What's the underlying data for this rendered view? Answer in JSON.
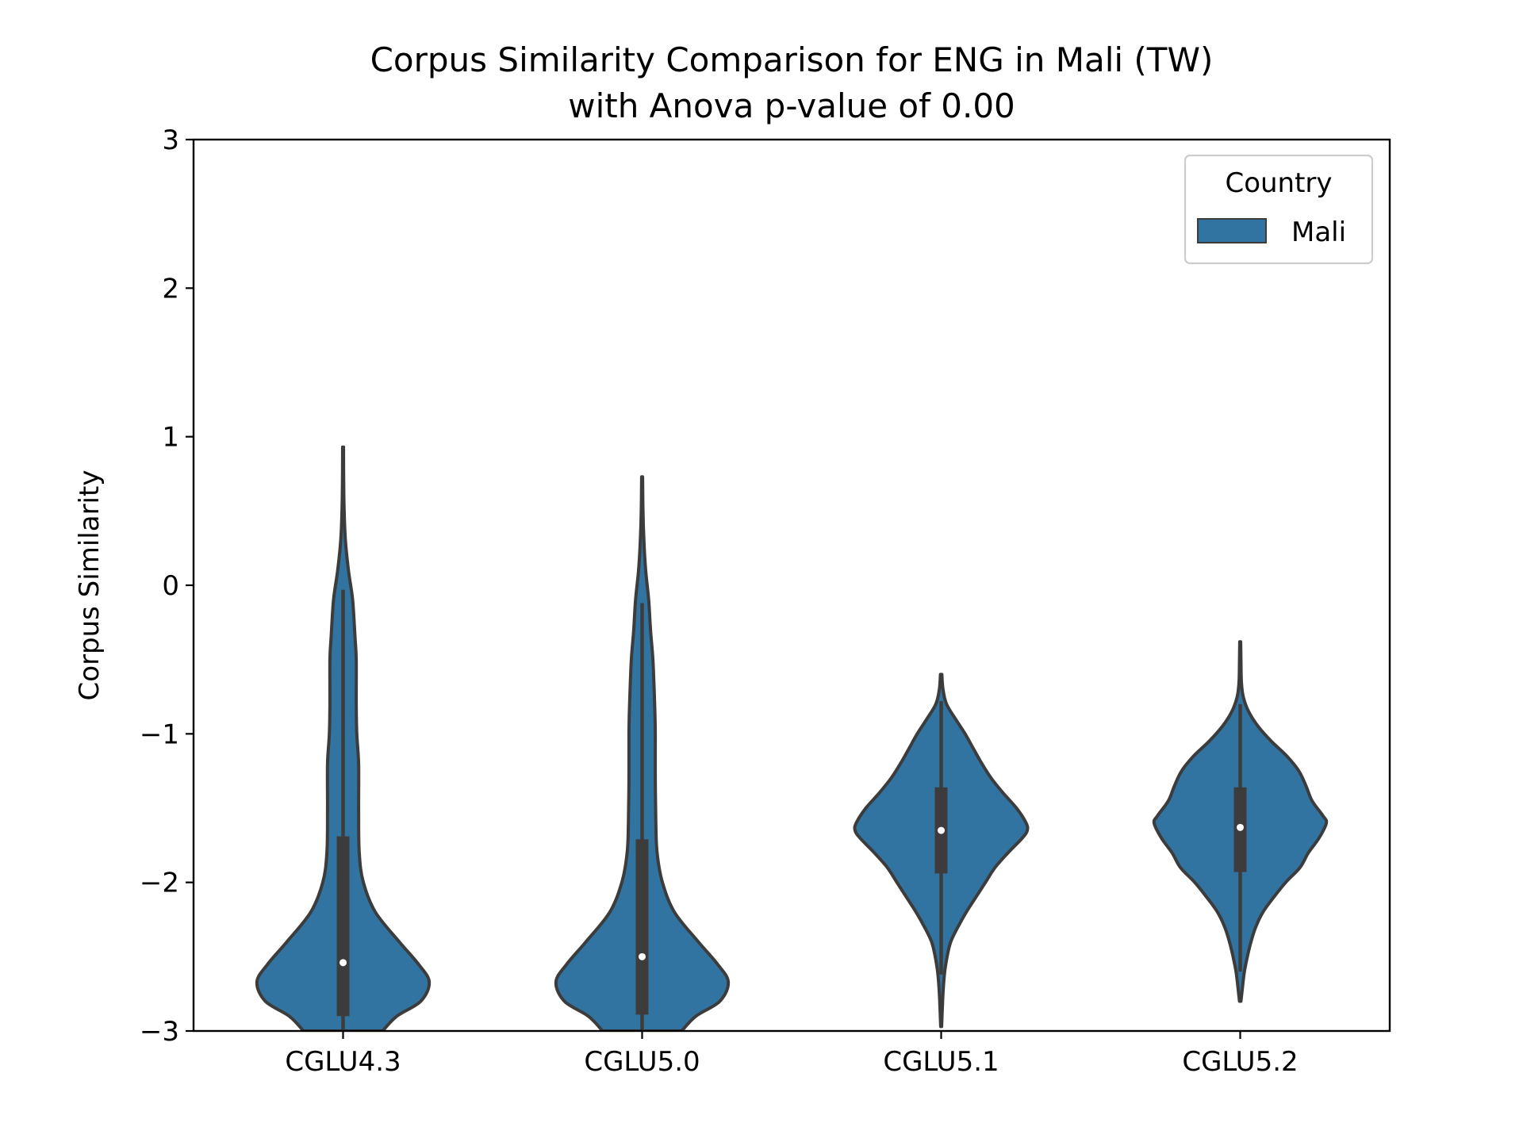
{
  "chart_data": {
    "type": "violin",
    "title": "Corpus Similarity Comparison for ENG in Mali (TW)",
    "subtitle": "with Anova p-value of 0.00",
    "xlabel": "",
    "ylabel": "Corpus Similarity",
    "ylim": [
      -3,
      3
    ],
    "y_ticks": [
      3,
      2,
      1,
      0,
      -1,
      -2,
      -3
    ],
    "y_tick_labels": [
      "3",
      "2",
      "1",
      "0",
      "−1",
      "−2",
      "−3"
    ],
    "categories": [
      "CGLU4.3",
      "CGLU5.0",
      "CGLU5.1",
      "CGLU5.2"
    ],
    "legend": {
      "title": "Country",
      "entries": [
        "Mali"
      ],
      "position": "upper right"
    },
    "colors": {
      "fill": "#3274a1",
      "edge": "#3c3c3c",
      "box": "#3c3c3c",
      "median": "#ffffff",
      "axis": "#000000"
    },
    "series": [
      {
        "name": "Mali",
        "groups": [
          {
            "category": "CGLU4.3",
            "median": -2.54,
            "q1": -2.9,
            "q3": -1.69,
            "whisker_low": -3.0,
            "whisker_high": -0.03,
            "profile": [
              [
                0.93,
                0.004
              ],
              [
                0.7,
                0.005
              ],
              [
                0.5,
                0.009
              ],
              [
                0.3,
                0.02
              ],
              [
                0.1,
                0.045
              ],
              [
                -0.1,
                0.08
              ],
              [
                -0.35,
                0.1
              ],
              [
                -0.5,
                0.11
              ],
              [
                -0.8,
                0.11
              ],
              [
                -1.0,
                0.115
              ],
              [
                -1.2,
                0.13
              ],
              [
                -1.5,
                0.13
              ],
              [
                -1.8,
                0.135
              ],
              [
                -2.0,
                0.17
              ],
              [
                -2.2,
                0.27
              ],
              [
                -2.4,
                0.47
              ],
              [
                -2.55,
                0.63
              ],
              [
                -2.67,
                0.72
              ],
              [
                -2.8,
                0.65
              ],
              [
                -2.9,
                0.45
              ],
              [
                -3.0,
                0.33
              ]
            ]
          },
          {
            "category": "CGLU5.0",
            "median": -2.5,
            "q1": -2.89,
            "q3": -1.71,
            "whisker_low": -3.0,
            "whisker_high": -0.12,
            "profile": [
              [
                0.73,
                0.004
              ],
              [
                0.5,
                0.007
              ],
              [
                0.3,
                0.015
              ],
              [
                0.1,
                0.03
              ],
              [
                -0.1,
                0.055
              ],
              [
                -0.3,
                0.07
              ],
              [
                -0.5,
                0.09
              ],
              [
                -0.8,
                0.105
              ],
              [
                -1.0,
                0.11
              ],
              [
                -1.3,
                0.11
              ],
              [
                -1.6,
                0.115
              ],
              [
                -1.8,
                0.125
              ],
              [
                -2.0,
                0.17
              ],
              [
                -2.2,
                0.27
              ],
              [
                -2.4,
                0.47
              ],
              [
                -2.55,
                0.63
              ],
              [
                -2.67,
                0.72
              ],
              [
                -2.8,
                0.65
              ],
              [
                -2.9,
                0.45
              ],
              [
                -3.0,
                0.33
              ]
            ]
          },
          {
            "category": "CGLU5.1",
            "median": -1.65,
            "q1": -1.94,
            "q3": -1.36,
            "whisker_low": -2.62,
            "whisker_high": -0.78,
            "profile": [
              [
                -0.6,
                0.006
              ],
              [
                -0.7,
                0.015
              ],
              [
                -0.8,
                0.045
              ],
              [
                -0.9,
                0.12
              ],
              [
                -1.0,
                0.2
              ],
              [
                -1.1,
                0.27
              ],
              [
                -1.2,
                0.34
              ],
              [
                -1.3,
                0.42
              ],
              [
                -1.4,
                0.52
              ],
              [
                -1.5,
                0.63
              ],
              [
                -1.6,
                0.71
              ],
              [
                -1.65,
                0.72
              ],
              [
                -1.7,
                0.68
              ],
              [
                -1.8,
                0.56
              ],
              [
                -1.9,
                0.45
              ],
              [
                -2.0,
                0.37
              ],
              [
                -2.1,
                0.29
              ],
              [
                -2.2,
                0.21
              ],
              [
                -2.3,
                0.14
              ],
              [
                -2.4,
                0.08
              ],
              [
                -2.5,
                0.05
              ],
              [
                -2.6,
                0.03
              ],
              [
                -2.75,
                0.015
              ],
              [
                -2.97,
                0.004
              ]
            ]
          },
          {
            "category": "CGLU5.2",
            "median": -1.63,
            "q1": -1.93,
            "q3": -1.36,
            "whisker_low": -2.6,
            "whisker_high": -0.8,
            "profile": [
              [
                -0.38,
                0.004
              ],
              [
                -0.5,
                0.006
              ],
              [
                -0.65,
                0.01
              ],
              [
                -0.75,
                0.025
              ],
              [
                -0.85,
                0.07
              ],
              [
                -0.95,
                0.15
              ],
              [
                -1.05,
                0.26
              ],
              [
                -1.15,
                0.39
              ],
              [
                -1.25,
                0.49
              ],
              [
                -1.35,
                0.55
              ],
              [
                -1.45,
                0.6
              ],
              [
                -1.55,
                0.69
              ],
              [
                -1.6,
                0.72
              ],
              [
                -1.7,
                0.66
              ],
              [
                -1.8,
                0.57
              ],
              [
                -1.9,
                0.5
              ],
              [
                -2.0,
                0.38
              ],
              [
                -2.1,
                0.28
              ],
              [
                -2.2,
                0.19
              ],
              [
                -2.3,
                0.13
              ],
              [
                -2.4,
                0.09
              ],
              [
                -2.5,
                0.06
              ],
              [
                -2.6,
                0.035
              ],
              [
                -2.7,
                0.02
              ],
              [
                -2.8,
                0.006
              ]
            ]
          }
        ]
      }
    ]
  }
}
